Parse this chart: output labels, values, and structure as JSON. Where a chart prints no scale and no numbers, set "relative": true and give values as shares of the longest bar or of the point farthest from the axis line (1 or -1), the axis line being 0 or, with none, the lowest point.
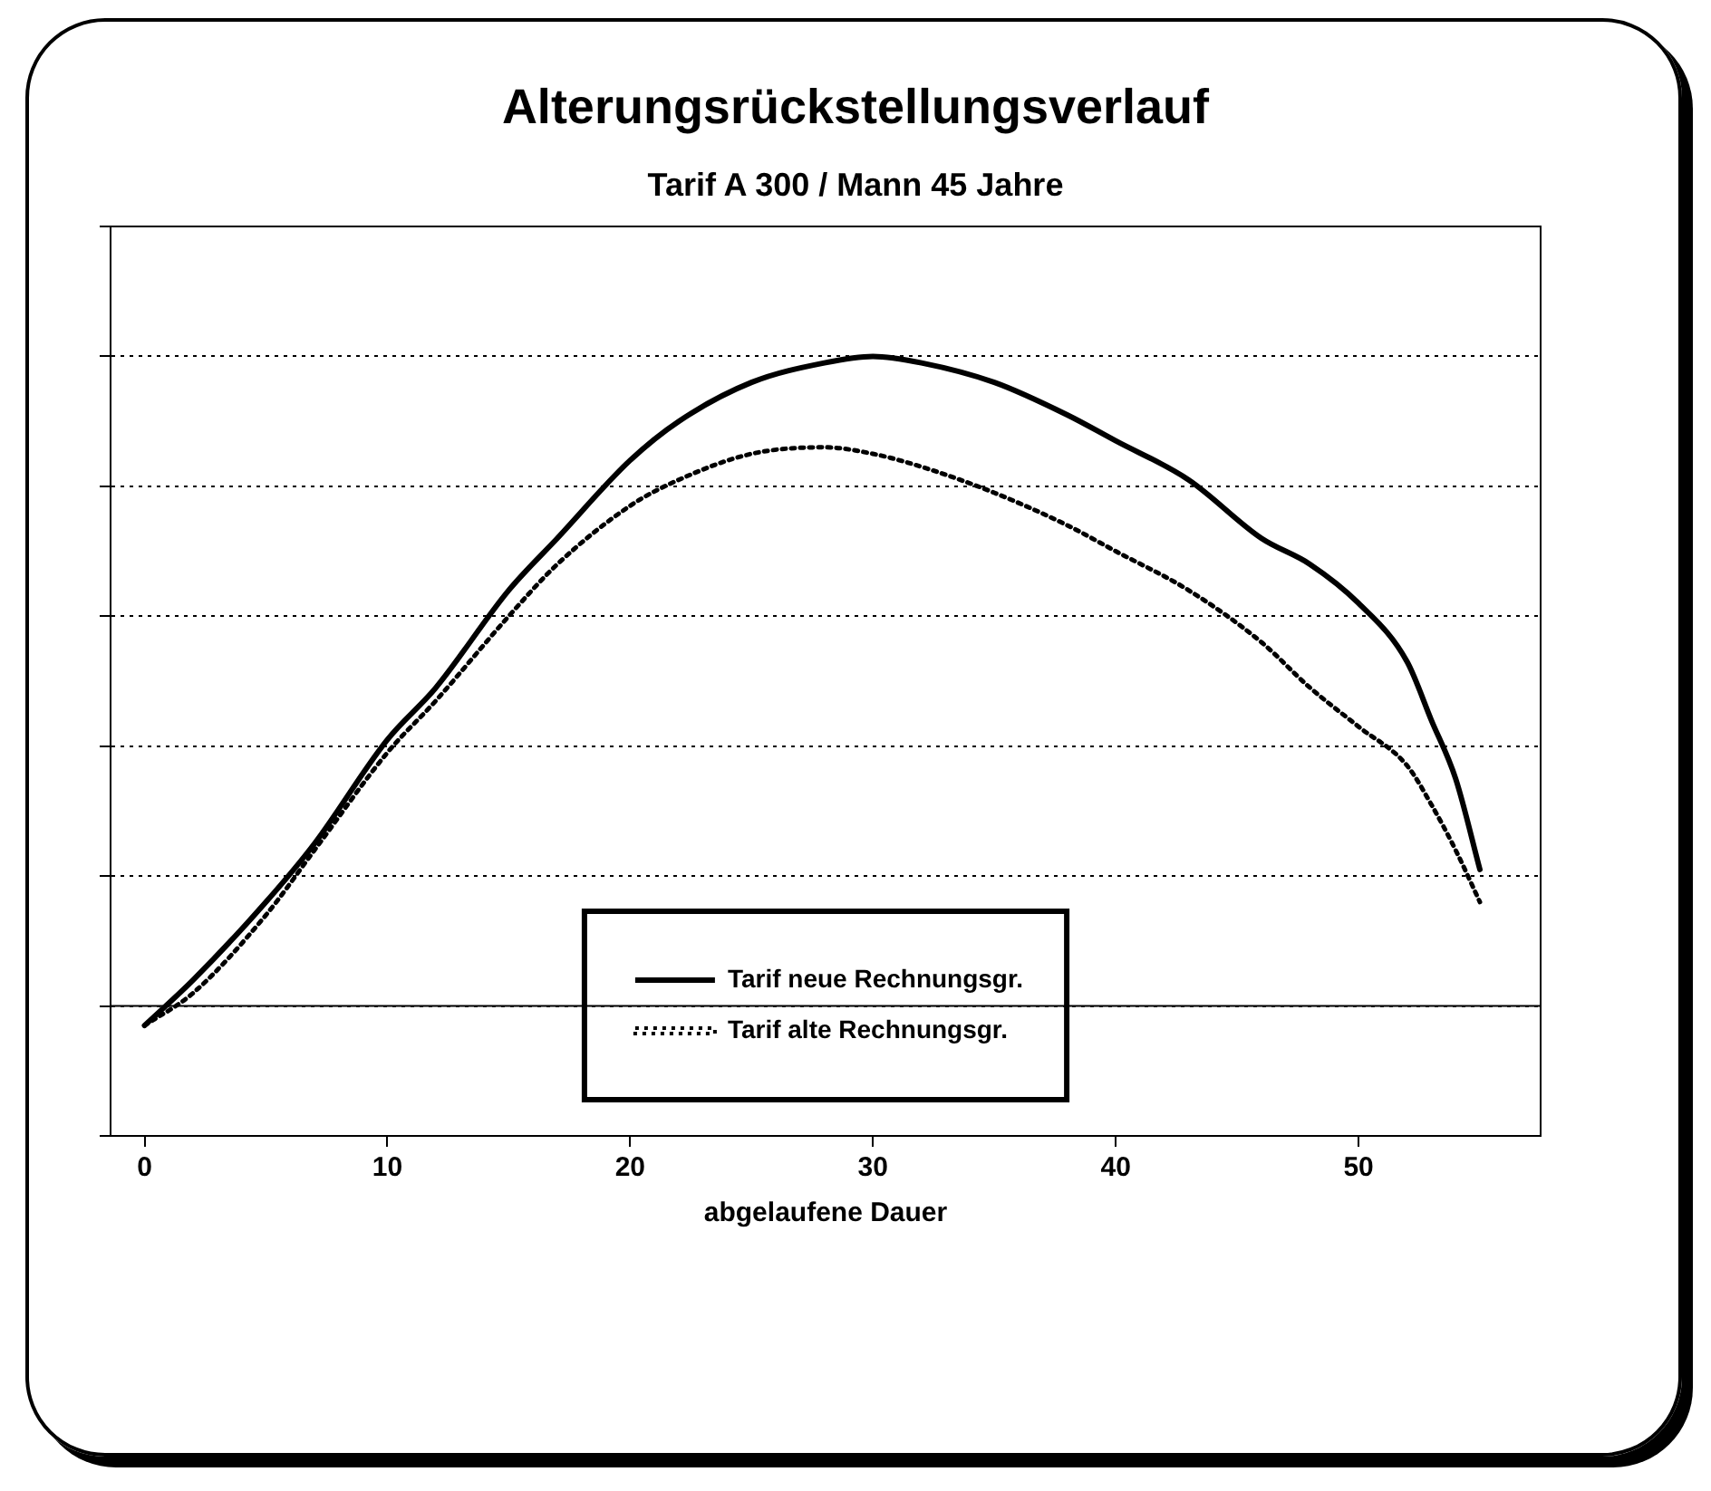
{
  "chart_data": {
    "type": "line",
    "title": "Alterungsrückstellungsverlauf",
    "subtitle": "Tarif A 300 / Mann 45 Jahre",
    "xlabel": "abgelaufene Dauer",
    "relative": true,
    "x": [
      0,
      2,
      5,
      7,
      10,
      12,
      15,
      17,
      20,
      22,
      25,
      28,
      30,
      32,
      35,
      38,
      40,
      43,
      46,
      48,
      50,
      52,
      53,
      54,
      55
    ],
    "series": [
      {
        "name": "Tarif neue Rechnungsgr.",
        "color": "#000000",
        "line_style": "solid",
        "values": [
          -0.03,
          0.04,
          0.16,
          0.25,
          0.41,
          0.49,
          0.64,
          0.72,
          0.84,
          0.9,
          0.96,
          0.99,
          1,
          0.99,
          0.96,
          0.91,
          0.87,
          0.81,
          0.72,
          0.68,
          0.62,
          0.53,
          0.44,
          0.35,
          0.21
        ]
      },
      {
        "name": "Tarif alte Rechnungsgr.",
        "color": "#000000",
        "line_style": "dotted",
        "values": [
          -0.03,
          0.02,
          0.14,
          0.24,
          0.39,
          0.47,
          0.6,
          0.68,
          0.77,
          0.81,
          0.85,
          0.86,
          0.85,
          0.83,
          0.79,
          0.74,
          0.7,
          0.64,
          0.56,
          0.49,
          0.43,
          0.37,
          0.31,
          0.24,
          0.16
        ]
      }
    ],
    "xlim": [
      -1.4,
      57.5
    ],
    "xticks": [
      0,
      10,
      20,
      30,
      40,
      50
    ],
    "grid": "y",
    "legend": "bottom",
    "tick_labels": "x",
    "marker": "none"
  }
}
